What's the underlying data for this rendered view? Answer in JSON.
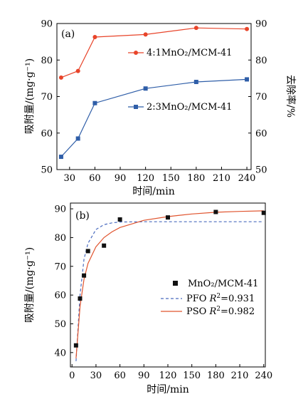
{
  "chart_data": [
    {
      "type": "line",
      "panel_label": "(a)",
      "title": "",
      "xlabel": "时间/min",
      "ylabel": "吸附量/(mg·g⁻¹)",
      "y2label": "去除率/%",
      "xlim": [
        15,
        245
      ],
      "xticks": [
        30,
        60,
        90,
        120,
        150,
        180,
        210,
        240
      ],
      "ylim": [
        50,
        90
      ],
      "yticks": [
        50,
        60,
        70,
        80,
        90
      ],
      "y2lim": [
        50,
        90
      ],
      "y2ticks": [
        50,
        60,
        70,
        80,
        90
      ],
      "grid": false,
      "legend_position": "inside-right",
      "series": [
        {
          "name": "4:1MnO₂/MCM-41",
          "color": "#e8442a",
          "marker": "circle",
          "axis": "left",
          "x": [
            20,
            40,
            60,
            120,
            180,
            240
          ],
          "values": [
            75.2,
            77.0,
            86.3,
            87.0,
            88.8,
            88.5
          ]
        },
        {
          "name": "2:3MnO₂/MCM-41",
          "color": "#2f5ea8",
          "marker": "square",
          "axis": "left",
          "x": [
            20,
            40,
            60,
            120,
            180,
            240
          ],
          "values": [
            53.5,
            58.5,
            68.2,
            72.2,
            74.0,
            74.7
          ]
        }
      ]
    },
    {
      "type": "scatter",
      "panel_label": "(b)",
      "title": "",
      "xlabel": "时间/min",
      "ylabel": "吸附量/(mg·g⁻¹)",
      "xlim": [
        -2,
        242
      ],
      "xticks": [
        0,
        30,
        60,
        90,
        120,
        150,
        180,
        210,
        240
      ],
      "ylim": [
        35,
        92
      ],
      "yticks": [
        40,
        50,
        60,
        70,
        80,
        90
      ],
      "grid": false,
      "legend_position": "right",
      "series": [
        {
          "name": "MnO₂/MCM-41",
          "color": "#111111",
          "marker": "square",
          "x": [
            5,
            10,
            15,
            20,
            40,
            60,
            120,
            180,
            240
          ],
          "values": [
            42.5,
            58.8,
            66.8,
            75.3,
            77.2,
            86.3,
            87.0,
            88.9,
            88.6
          ]
        }
      ],
      "fits": [
        {
          "name": "PFO",
          "r2_label": "R",
          "r2_sup": "2",
          "r2_value": "=0.931",
          "color": "#4a6bbf",
          "style": "dashed",
          "x": [
            5,
            10,
            15,
            20,
            30,
            40,
            50,
            60,
            90,
            120,
            150,
            180,
            210,
            240
          ],
          "values": [
            37.0,
            60.0,
            72.5,
            78.0,
            82.8,
            84.5,
            85.1,
            85.4,
            85.5,
            85.5,
            85.5,
            85.5,
            85.5,
            85.5
          ]
        },
        {
          "name": "PSO",
          "r2_label": "R",
          "r2_sup": "2",
          "r2_value": "=0.982",
          "color": "#e0542e",
          "style": "solid",
          "x": [
            5,
            10,
            15,
            20,
            30,
            40,
            50,
            60,
            90,
            120,
            150,
            180,
            210,
            240
          ],
          "values": [
            38.0,
            56.0,
            65.5,
            71.0,
            76.8,
            80.0,
            82.0,
            83.5,
            86.0,
            87.3,
            88.2,
            88.8,
            89.1,
            89.3
          ]
        }
      ]
    }
  ]
}
